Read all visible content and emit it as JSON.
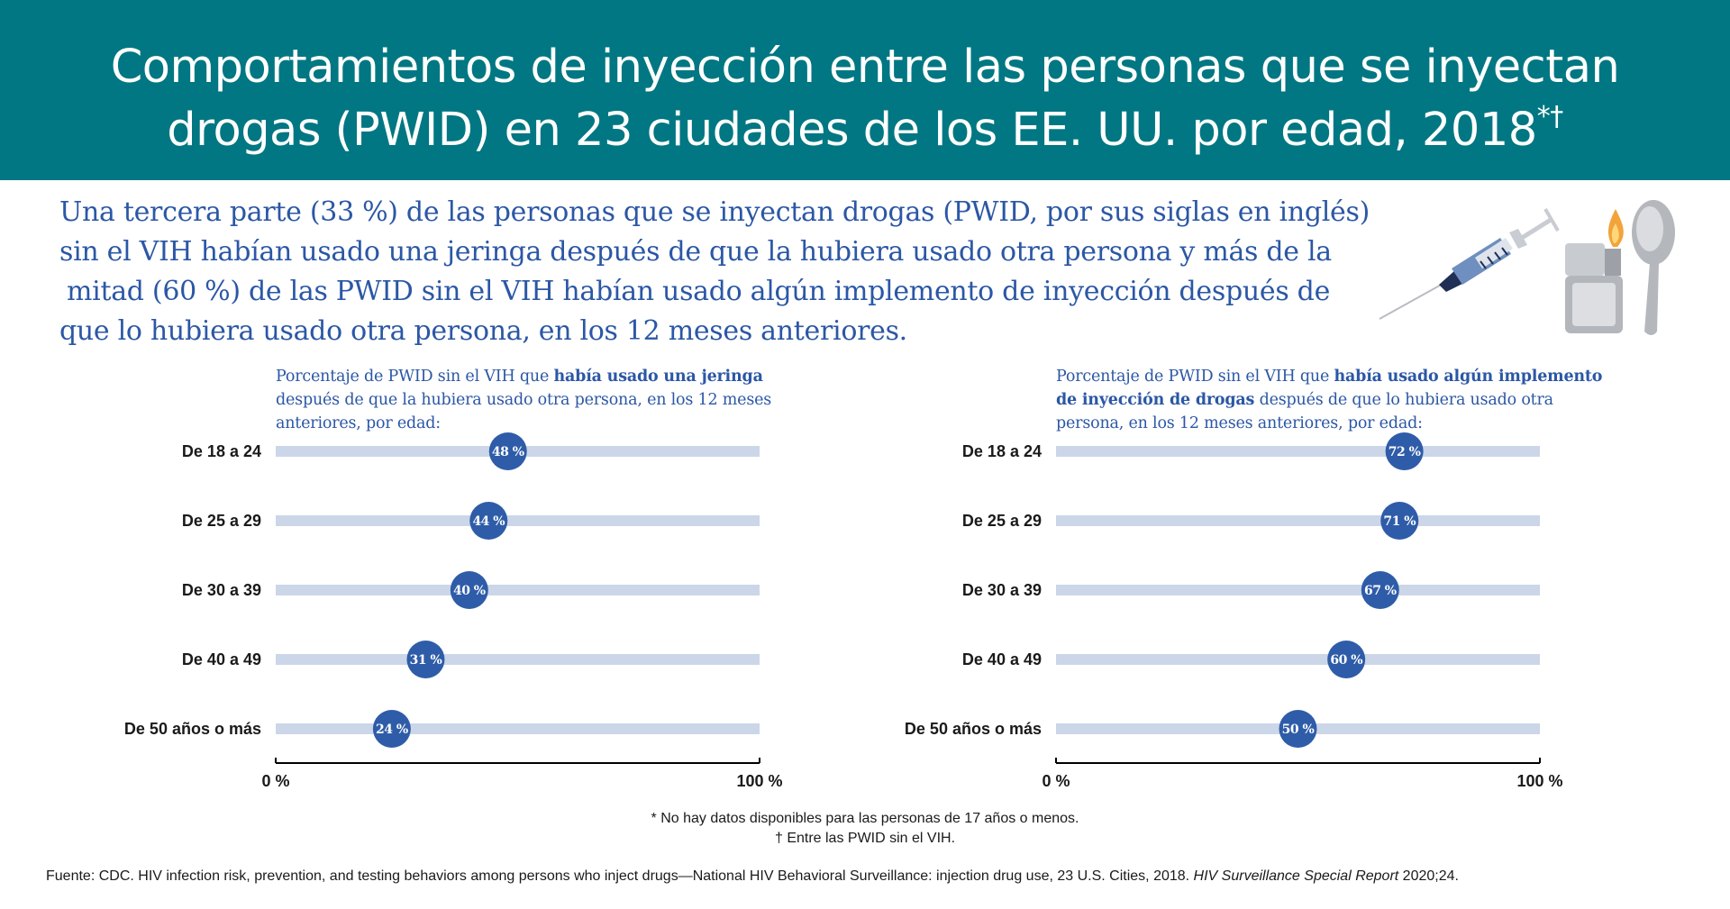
{
  "header": {
    "title_line1": "Comportamientos de inyección entre las personas que se inyectan",
    "title_line2": "drogas (PWID) en 23 ciudades de los EE. UU. por edad, 2018",
    "title_marks": "*†"
  },
  "intro": {
    "line1": "Una tercera parte (33 %) de las personas que se inyectan drogas (PWID, por sus siglas en inglés)",
    "line2": "sin el VIH habían usado una jeringa después de que la hubiera usado otra persona y más de la",
    "line3": "mitad (60 %) de las PWID sin el VIH habían usado algún implemento de inyección después de",
    "line4": "que lo hubiera usado otra persona, en los 12 meses anteriores."
  },
  "illustration": {
    "icons": [
      "syringe-icon",
      "lighter-icon",
      "spoon-icon"
    ]
  },
  "charts": {
    "left_title": {
      "l1a": "Porcentaje de PWID sin el VIH que ",
      "l1b": "había usado una jeringa",
      "l2": "después de que la hubiera usado otra persona, en los 12 meses",
      "l3": "anteriores, por edad:"
    },
    "right_title": {
      "l1a": "Porcentaje de PWID sin el VIH que ",
      "l1b": "había usado algún implemento",
      "l2a": "de inyección de drogas",
      "l2b": " después de que lo hubiera usado otra",
      "l3": "persona, en los 12 meses anteriores, por edad:"
    }
  },
  "chart_data": [
    {
      "type": "dot",
      "categories": [
        "De 18 a 24",
        "De 25 a 29",
        "De 30 a 39",
        "De 40 a 49",
        "De 50 años o más"
      ],
      "values": [
        48,
        44,
        40,
        31,
        24
      ],
      "value_labels": [
        "48 %",
        "44 %",
        "40 %",
        "31 %",
        "24 %"
      ],
      "xlim": [
        0,
        100
      ],
      "x_tick_labels": [
        "0 %",
        "100 %"
      ],
      "colors": {
        "track": "#cbd6e8",
        "dot": "#2e5ca8",
        "dot_text": "#ffffff",
        "axis": "#000000"
      }
    },
    {
      "type": "dot",
      "categories": [
        "De 18 a 24",
        "De 25 a 29",
        "De 30 a 39",
        "De 40 a 49",
        "De 50 años o más"
      ],
      "values": [
        72,
        71,
        67,
        60,
        50
      ],
      "value_labels": [
        "72 %",
        "71 %",
        "67 %",
        "60 %",
        "50 %"
      ],
      "xlim": [
        0,
        100
      ],
      "x_tick_labels": [
        "0 %",
        "100 %"
      ],
      "colors": {
        "track": "#cbd6e8",
        "dot": "#2e5ca8",
        "dot_text": "#ffffff",
        "axis": "#000000"
      }
    }
  ],
  "footnotes": {
    "note1": "* No hay datos disponibles para las personas de 17 años o menos.",
    "note2": "† Entre las PWID sin el VIH."
  },
  "source": {
    "text": "Fuente: CDC. HIV infection risk, prevention, and testing behaviors among persons who inject drugs—National HIV Behavioral Surveillance: injection drug use, 23 U.S. Cities, 2018. ",
    "italic": "HIV Surveillance Special Report",
    "tail": " 2020;24."
  },
  "colors": {
    "header_bg": "#007782",
    "intro_text": "#2b57a5"
  }
}
